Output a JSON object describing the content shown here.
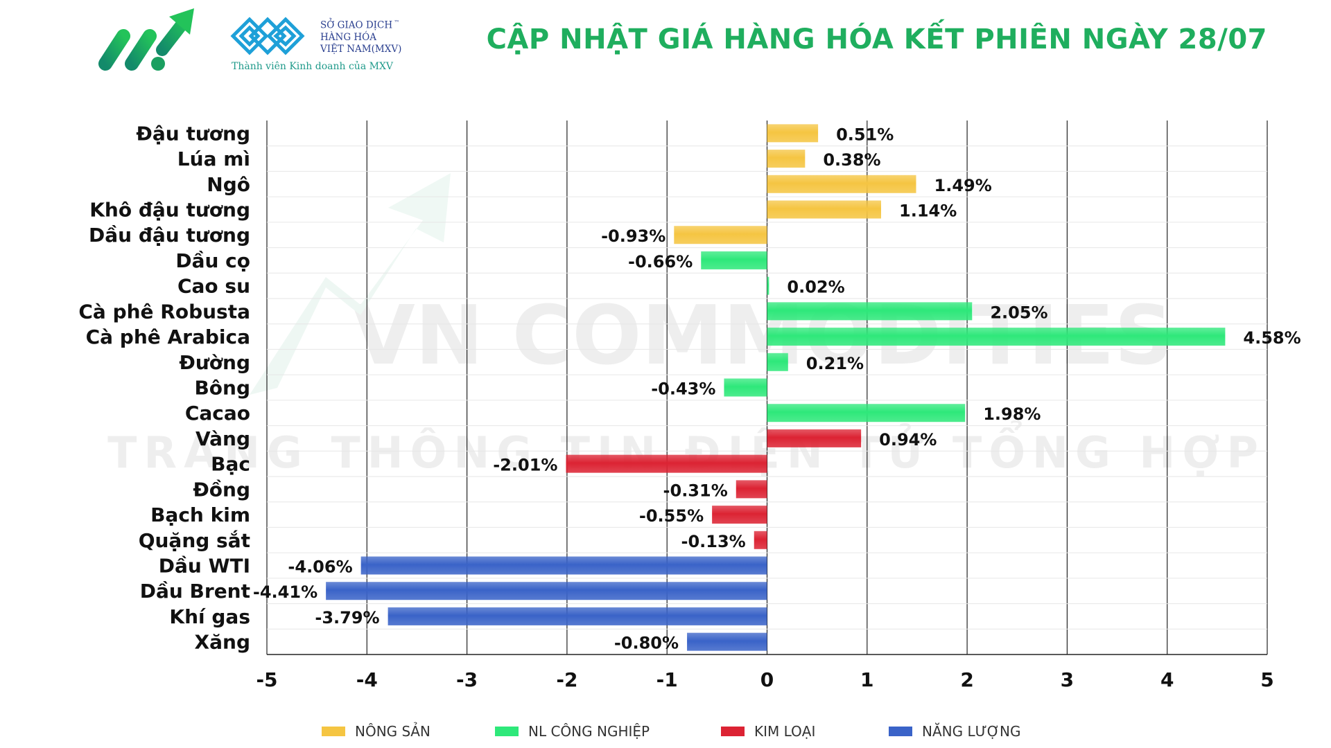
{
  "header": {
    "title": "CẬP NHẬT GIÁ HÀNG HÓA KẾT PHIÊN NGÀY 28/07",
    "exchange_line1": "SỞ GIAO DỊCH",
    "exchange_line2": "HÀNG HÓA",
    "exchange_line3": "VIỆT NAM(MXV)",
    "exchange_tm": "™",
    "member_text": "Thành viên Kinh doanh của MXV"
  },
  "watermark": {
    "line1": "VN COMMODITIES",
    "line2": "TRANG THÔNG TIN ĐIỆN TỬ TỔNG HỢP"
  },
  "colors": {
    "title": "#1fae5e",
    "NÔNG SẢN": "#f5c542",
    "NL CÔNG NGHIỆP": "#2ee87a",
    "KIM LOẠI": "#dc2333",
    "NĂNG LƯỢNG": "#3a63c8"
  },
  "chart_data": {
    "type": "bar",
    "orientation": "horizontal",
    "xlim": [
      -5,
      5
    ],
    "xticks": [
      -5,
      -4,
      -3,
      -2,
      -1,
      0,
      1,
      2,
      3,
      4,
      5
    ],
    "grid": "vertical",
    "legend_position": "bottom",
    "series": [
      {
        "name": "NÔNG SẢN"
      },
      {
        "name": "NL CÔNG NGHIỆP"
      },
      {
        "name": "KIM LOẠI"
      },
      {
        "name": "NĂNG LƯỢNG"
      }
    ],
    "rows": [
      {
        "label": "Đậu tương",
        "value": 0.51,
        "text": "0.51%",
        "group": "NÔNG SẢN"
      },
      {
        "label": "Lúa mì",
        "value": 0.38,
        "text": "0.38%",
        "group": "NÔNG SẢN"
      },
      {
        "label": "Ngô",
        "value": 1.49,
        "text": "1.49%",
        "group": "NÔNG SẢN"
      },
      {
        "label": "Khô đậu tương",
        "value": 1.14,
        "text": "1.14%",
        "group": "NÔNG SẢN"
      },
      {
        "label": "Dầu đậu tương",
        "value": -0.93,
        "text": "-0.93%",
        "group": "NÔNG SẢN"
      },
      {
        "label": "Dầu cọ",
        "value": -0.66,
        "text": "-0.66%",
        "group": "NL CÔNG NGHIỆP"
      },
      {
        "label": "Cao su",
        "value": 0.02,
        "text": "0.02%",
        "group": "NL CÔNG NGHIỆP"
      },
      {
        "label": "Cà phê Robusta",
        "value": 2.05,
        "text": "2.05%",
        "group": "NL CÔNG NGHIỆP"
      },
      {
        "label": "Cà phê Arabica",
        "value": 4.58,
        "text": "4.58%",
        "group": "NL CÔNG NGHIỆP"
      },
      {
        "label": "Đường",
        "value": 0.21,
        "text": "0.21%",
        "group": "NL CÔNG NGHIỆP"
      },
      {
        "label": "Bông",
        "value": -0.43,
        "text": "-0.43%",
        "group": "NL CÔNG NGHIỆP"
      },
      {
        "label": "Cacao",
        "value": 1.98,
        "text": "1.98%",
        "group": "NL CÔNG NGHIỆP"
      },
      {
        "label": "Vàng",
        "value": 0.94,
        "text": "0.94%",
        "group": "KIM LOẠI"
      },
      {
        "label": "Bạc",
        "value": -2.01,
        "text": "-2.01%",
        "group": "KIM LOẠI"
      },
      {
        "label": "Đồng",
        "value": -0.31,
        "text": "-0.31%",
        "group": "KIM LOẠI"
      },
      {
        "label": "Bạch kim",
        "value": -0.55,
        "text": "-0.55%",
        "group": "KIM LOẠI"
      },
      {
        "label": "Quặng sắt",
        "value": -0.13,
        "text": "-0.13%",
        "group": "KIM LOẠI"
      },
      {
        "label": "Dầu WTI",
        "value": -4.06,
        "text": "-4.06%",
        "group": "NĂNG LƯỢNG"
      },
      {
        "label": "Dầu Brent",
        "value": -4.41,
        "text": "-4.41%",
        "group": "NĂNG LƯỢNG"
      },
      {
        "label": "Khí gas",
        "value": -3.79,
        "text": "-3.79%",
        "group": "NĂNG LƯỢNG"
      },
      {
        "label": "Xăng",
        "value": -0.8,
        "text": "-0.80%",
        "group": "NĂNG LƯỢNG"
      }
    ]
  }
}
